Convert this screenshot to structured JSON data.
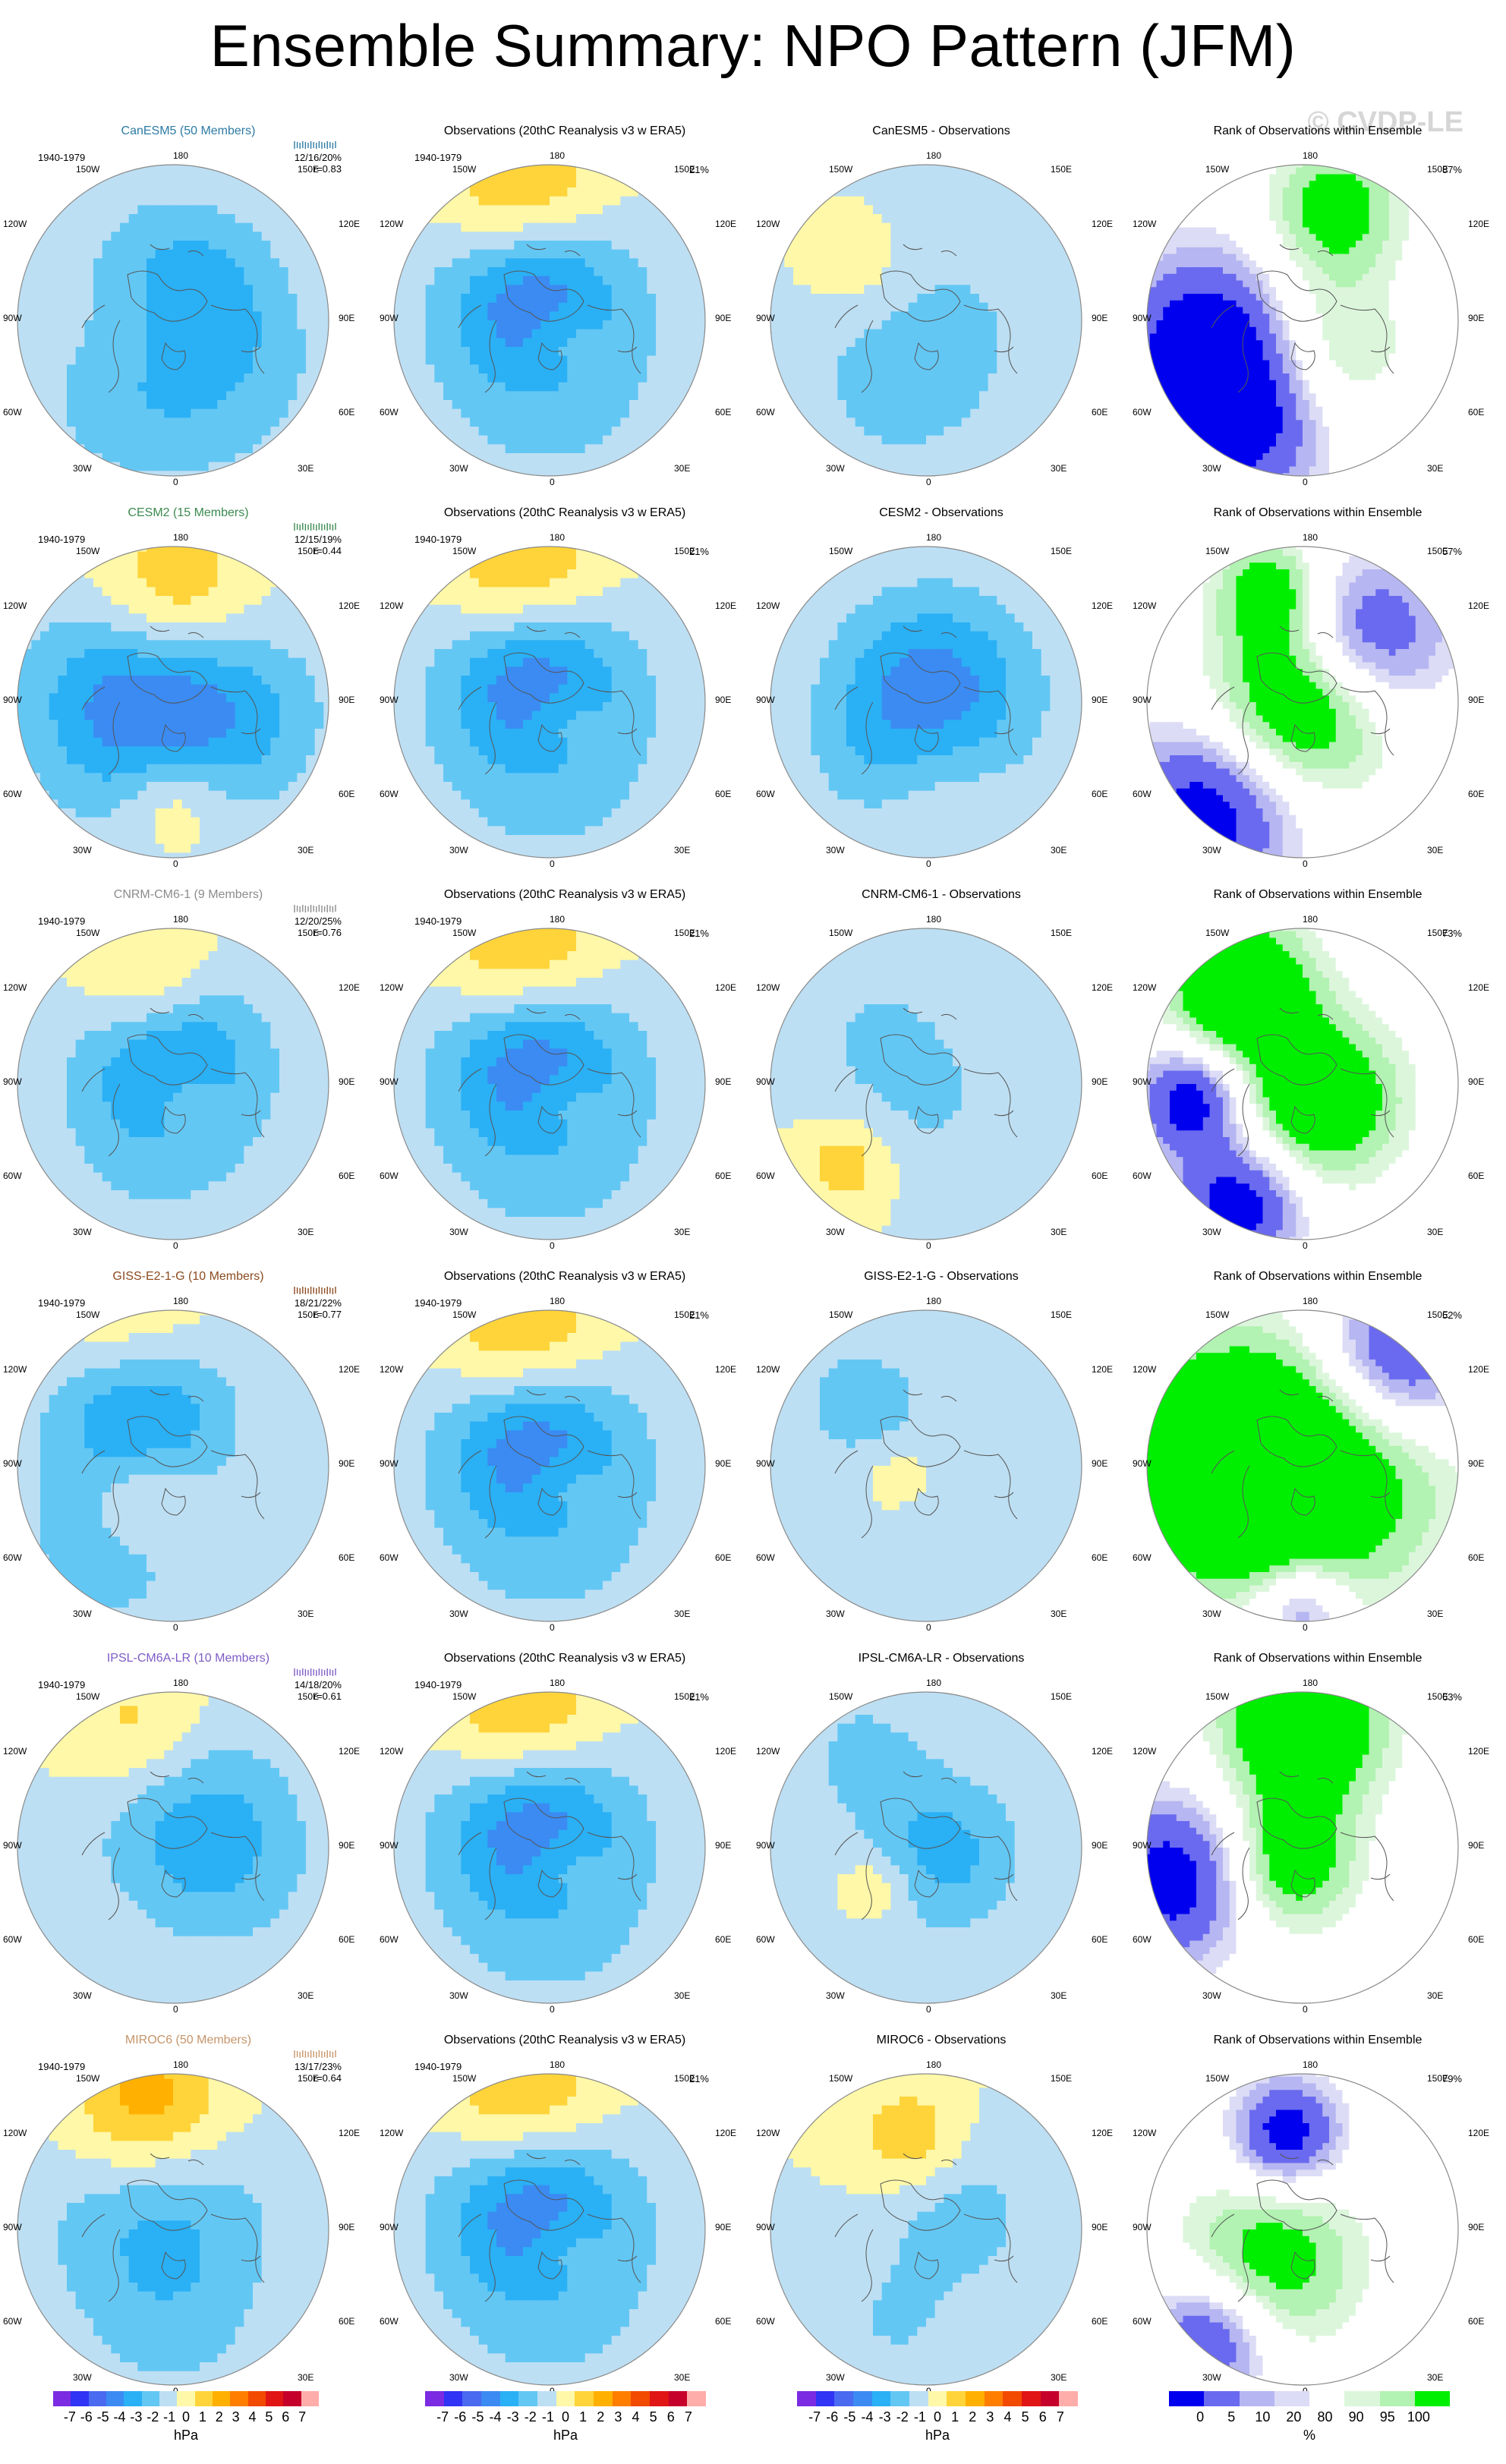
{
  "title": "Ensemble Summary: NPO Pattern (JFM)",
  "watermark": "© CVDP-LE",
  "period": "1940-1979",
  "lon_labels": {
    "top": "180",
    "bottom": "0",
    "ul": "150W",
    "ur": "150E",
    "ml": "120W",
    "mr": "120E",
    "cl": "90W",
    "cr": "90E",
    "ll": "60W",
    "lr": "60E",
    "bl": "30W",
    "br": "30E"
  },
  "obs_title": "Observations (20thC Reanalysis v3 w ERA5)",
  "obs_pct": "21%",
  "rank_title": "Rank of Observations within Ensemble",
  "diff_suffix": " - Observations",
  "colors": {
    "land_outline": "#555555",
    "circle_edge": "#8a8a8a",
    "anom_scale": [
      "#7b2be2",
      "#2f34f5",
      "#4a6af0",
      "#3b8bf3",
      "#2ab0f5",
      "#63c7f4",
      "#bddff3",
      "#fef8a8",
      "#ffd43a",
      "#ffb000",
      "#ff7e00",
      "#f24a00",
      "#e01515",
      "#c5002b",
      "#ffadaa"
    ],
    "rank_scale": [
      "#0000ee",
      "#6a6af0",
      "#b6b6f2",
      "#dcdcf6",
      "#ffffff",
      "#dcf6dc",
      "#b2f2b2",
      "#00ee00"
    ]
  },
  "models": [
    {
      "name": "CanESM5 (50 Members)",
      "color": "#2c7aa3",
      "stats1": "12/16/20%",
      "stats2": "r=0.83",
      "diff_title": "CanESM5",
      "rank_pct": "87%",
      "amp": 1.0,
      "anom": [
        [
          0.5,
          0.44,
          -3.6,
          0.2
        ],
        [
          0.42,
          0.5,
          2.2,
          0.16
        ],
        [
          0.35,
          0.75,
          -1.2,
          0.22
        ],
        [
          0.7,
          0.7,
          -1.0,
          0.25
        ]
      ],
      "diff": [
        [
          0.4,
          0.7,
          -1.2,
          0.2
        ],
        [
          0.6,
          0.5,
          -0.9,
          0.25
        ],
        [
          0.3,
          0.35,
          0.9,
          0.12
        ]
      ],
      "rank": [
        [
          0.2,
          0.55,
          -0.8,
          0.2
        ],
        [
          0.3,
          0.8,
          -0.9,
          0.2
        ],
        [
          0.6,
          0.15,
          0.6,
          0.15
        ],
        [
          0.55,
          0.6,
          0.5,
          0.18
        ]
      ]
    },
    {
      "name": "CESM2 (15 Members)",
      "color": "#3b8a4f",
      "stats1": "12/15/19%",
      "stats2": "r=0.44",
      "diff_title": "CESM2",
      "rank_pct": "57%",
      "amp": 1.1,
      "anom": [
        [
          0.42,
          0.5,
          -3.8,
          0.25
        ],
        [
          0.5,
          0.18,
          2.6,
          0.18
        ],
        [
          0.5,
          0.8,
          1.8,
          0.12
        ],
        [
          0.75,
          0.55,
          -1.0,
          0.2
        ]
      ],
      "diff": [
        [
          0.52,
          0.48,
          -3.8,
          0.22
        ],
        [
          0.5,
          0.72,
          1.2,
          0.15
        ],
        [
          0.35,
          0.7,
          -1.0,
          0.15
        ]
      ],
      "rank": [
        [
          0.5,
          0.5,
          0.9,
          0.2
        ],
        [
          0.2,
          0.85,
          -0.9,
          0.2
        ],
        [
          0.7,
          0.3,
          -0.8,
          0.18
        ],
        [
          0.4,
          0.15,
          0.6,
          0.12
        ]
      ]
    },
    {
      "name": "CNRM-CM6-1 (9 Members)",
      "color": "#8c8c8c",
      "stats1": "12/20/25%",
      "stats2": "r=0.76",
      "diff_title": "CNRM-CM6-1",
      "rank_pct": "73%",
      "amp": 1.0,
      "anom": [
        [
          0.5,
          0.4,
          -3.2,
          0.2
        ],
        [
          0.43,
          0.18,
          2.3,
          0.15
        ],
        [
          0.45,
          0.7,
          -1.0,
          0.25
        ],
        [
          0.55,
          0.55,
          1.5,
          0.08
        ]
      ],
      "diff": [
        [
          0.35,
          0.35,
          -1.0,
          0.2
        ],
        [
          0.25,
          0.75,
          1.8,
          0.1
        ],
        [
          0.55,
          0.6,
          -0.8,
          0.2
        ]
      ],
      "rank": [
        [
          0.3,
          0.2,
          0.9,
          0.16
        ],
        [
          0.15,
          0.55,
          -0.9,
          0.12
        ],
        [
          0.55,
          0.55,
          0.8,
          0.18
        ],
        [
          0.3,
          0.88,
          -0.9,
          0.14
        ]
      ]
    },
    {
      "name": "GISS-E2-1-G (10 Members)",
      "color": "#8b4a1f",
      "stats1": "18/21/22%",
      "stats2": "r=0.77",
      "diff_title": "GISS-E2-1-G",
      "rank_pct": "52%",
      "amp": 1.0,
      "anom": [
        [
          0.4,
          0.3,
          -4.0,
          0.2
        ],
        [
          0.38,
          0.12,
          2.4,
          0.18
        ],
        [
          0.4,
          0.6,
          2.0,
          0.12
        ],
        [
          0.3,
          0.75,
          -1.6,
          0.2
        ]
      ],
      "diff": [
        [
          0.3,
          0.3,
          -1.5,
          0.15
        ],
        [
          0.5,
          0.65,
          -1.2,
          0.18
        ],
        [
          0.42,
          0.55,
          1.6,
          0.1
        ]
      ],
      "rank": [
        [
          0.5,
          0.5,
          0.9,
          0.3
        ],
        [
          0.8,
          0.15,
          -0.9,
          0.18
        ],
        [
          0.5,
          0.95,
          -0.6,
          0.1
        ],
        [
          0.15,
          0.5,
          0.9,
          0.2
        ]
      ]
    },
    {
      "name": "IPSL-CM6A-LR (10 Members)",
      "color": "#7e5cc6",
      "stats1": "14/18/20%",
      "stats2": "r=0.61",
      "diff_title": "IPSL-CM6A-LR",
      "rank_pct": "63%",
      "amp": 0.9,
      "anom": [
        [
          0.55,
          0.4,
          -2.6,
          0.22
        ],
        [
          0.4,
          0.15,
          2.0,
          0.16
        ],
        [
          0.7,
          0.6,
          -1.0,
          0.2
        ]
      ],
      "diff": [
        [
          0.55,
          0.52,
          -2.4,
          0.18
        ],
        [
          0.3,
          0.2,
          -1.2,
          0.15
        ],
        [
          0.35,
          0.62,
          1.5,
          0.08
        ]
      ],
      "rank": [
        [
          0.5,
          0.12,
          0.9,
          0.18
        ],
        [
          0.1,
          0.6,
          -0.9,
          0.18
        ],
        [
          0.45,
          0.55,
          0.7,
          0.15
        ]
      ]
    },
    {
      "name": "MIROC6 (50 Members)",
      "color": "#c6956a",
      "stats1": "13/17/23%",
      "stats2": "r=0.64",
      "diff_title": "MIROC6",
      "rank_pct": "79%",
      "amp": 1.0,
      "anom": [
        [
          0.45,
          0.42,
          -2.2,
          0.25
        ],
        [
          0.42,
          0.12,
          3.2,
          0.18
        ],
        [
          0.5,
          0.8,
          -1.0,
          0.22
        ]
      ],
      "diff": [
        [
          0.45,
          0.22,
          2.0,
          0.12
        ],
        [
          0.6,
          0.45,
          -1.5,
          0.18
        ],
        [
          0.4,
          0.8,
          -1.0,
          0.15
        ]
      ],
      "rank": [
        [
          0.45,
          0.2,
          -0.9,
          0.12
        ],
        [
          0.4,
          0.6,
          0.6,
          0.2
        ],
        [
          0.2,
          0.85,
          -0.8,
          0.14
        ]
      ]
    }
  ],
  "obs_field": [
    [
      0.45,
      0.4,
      -3.5,
      0.2
    ],
    [
      0.42,
      0.12,
      2.8,
      0.18
    ],
    [
      0.5,
      0.7,
      -1.2,
      0.3
    ],
    [
      0.55,
      0.55,
      1.2,
      0.08
    ]
  ],
  "colorbars": {
    "anom_ticks": [
      "-7",
      "-6",
      "-5",
      "-4",
      "-3",
      "-2",
      "-1",
      "0",
      "1",
      "2",
      "3",
      "4",
      "5",
      "6",
      "7"
    ],
    "anom_unit": "hPa",
    "rank_ticks": [
      "0",
      "5",
      "10",
      "20",
      "80",
      "90",
      "95",
      "100"
    ],
    "rank_unit": "%"
  }
}
